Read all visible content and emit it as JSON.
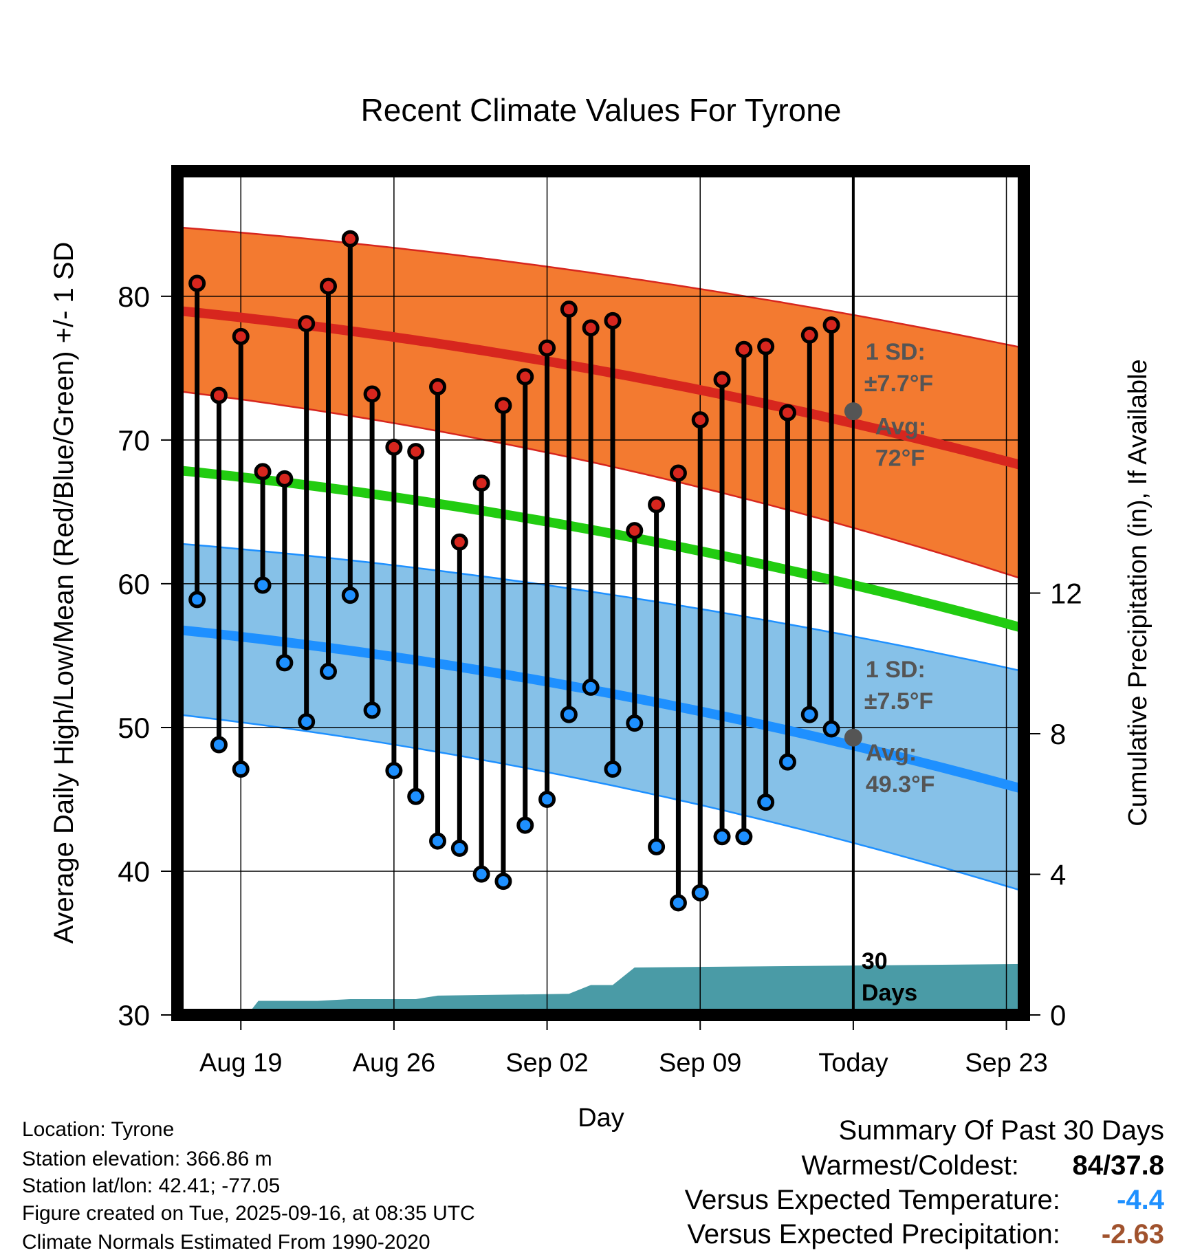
{
  "chart_data": {
    "type": "line",
    "title": "Recent Climate Values For Tyrone",
    "xlabel": "Day",
    "ylabel": "Average Daily High/Low/Mean (Red/Blue/Green) +/- 1 SD",
    "y2label": "Cumulative Precipitation (in), If Available",
    "xlim": [
      -2.9,
      35.8
    ],
    "x_tick_labels": [
      {
        "x": 0,
        "label": "Aug 19"
      },
      {
        "x": 7,
        "label": "Aug 26"
      },
      {
        "x": 14,
        "label": "Sep 02"
      },
      {
        "x": 21,
        "label": "Sep 09"
      },
      {
        "x": 28,
        "label": "Today"
      },
      {
        "x": 35,
        "label": "Sep 23"
      }
    ],
    "ylim": [
      30,
      88.7
    ],
    "y_ticks": [
      30,
      40,
      50,
      60,
      70,
      80
    ],
    "y_tick_labels": [
      "30",
      "40",
      "50",
      "60",
      "70",
      "80"
    ],
    "y2_ticks": [
      0,
      4,
      8,
      12
    ],
    "y2_tick_labels": [
      "0",
      "4",
      "8",
      "12"
    ],
    "y2lim": [
      0,
      24
    ],
    "grid": true,
    "today_x": 28,
    "normals": {
      "x": [
        -2.9,
        35.8
      ],
      "high_avg": [
        79.0,
        68.2
      ],
      "high_plus_sd": [
        84.8,
        76.4
      ],
      "high_minus_sd": [
        73.4,
        60.3
      ],
      "low_avg": [
        56.8,
        45.7
      ],
      "low_plus_sd": [
        62.8,
        53.9
      ],
      "low_minus_sd": [
        50.9,
        38.6
      ],
      "mean_avg": [
        67.9,
        56.9
      ]
    },
    "series": [
      {
        "name": "Daily High",
        "color": "#d7261e",
        "x": [
          -2,
          -1,
          0,
          1,
          2,
          3,
          4,
          5,
          6,
          7,
          8,
          9,
          10,
          11,
          12,
          13,
          14,
          15,
          16,
          17,
          18,
          19,
          20,
          21,
          22,
          23,
          24,
          25,
          26,
          27
        ],
        "values": [
          80.9,
          73.1,
          77.2,
          67.8,
          67.3,
          78.1,
          80.7,
          84.0,
          73.2,
          69.5,
          69.2,
          73.7,
          62.9,
          67.0,
          72.4,
          74.4,
          76.4,
          79.1,
          77.8,
          78.3,
          63.7,
          65.5,
          67.7,
          71.4,
          74.2,
          76.3,
          76.5,
          71.9,
          77.3,
          78.0
        ]
      },
      {
        "name": "Daily Low",
        "color": "#1e90ff",
        "x": [
          -2,
          -1,
          0,
          1,
          2,
          3,
          4,
          5,
          6,
          7,
          8,
          9,
          10,
          11,
          12,
          13,
          14,
          15,
          16,
          17,
          18,
          19,
          20,
          21,
          22,
          23,
          24,
          25,
          26,
          27
        ],
        "values": [
          58.9,
          48.8,
          47.1,
          59.9,
          54.5,
          50.4,
          53.9,
          59.2,
          51.2,
          47.0,
          45.2,
          42.1,
          41.6,
          39.8,
          39.3,
          43.2,
          45.0,
          50.9,
          52.8,
          47.1,
          50.3,
          41.7,
          37.8,
          38.5,
          42.4,
          42.4,
          44.8,
          47.6,
          50.9,
          49.9
        ]
      },
      {
        "name": "Cumulative Precipitation",
        "color": "#4a9ba6",
        "x": [
          -2.9,
          0.3,
          0.8,
          3.5,
          5.0,
          8.0,
          9.0,
          15.0,
          16.0,
          17.0,
          18.0,
          35.8
        ],
        "values": [
          0,
          0,
          0.4,
          0.4,
          0.45,
          0.45,
          0.55,
          0.6,
          0.85,
          0.85,
          1.35,
          1.45
        ]
      }
    ],
    "annotations": {
      "high_sd_label": "1 SD:",
      "high_sd_value": "±7.7°F",
      "high_avg_label": "Avg:",
      "high_avg_value": "72°F",
      "high_avg_today": 72,
      "low_sd_label": "1 SD:",
      "low_sd_value": "±7.5°F",
      "low_avg_label": "Avg:",
      "low_avg_value": "49.3°F",
      "low_avg_today": 49.3,
      "days_number": "30",
      "days_word": "Days"
    },
    "colors": {
      "high_band": "#f37a30",
      "high_line": "#d7261e",
      "low_band": "#86c1e8",
      "low_line": "#1e90ff",
      "mean_line": "#22cc11",
      "precip": "#4a9ba6",
      "annotation_text": "#555555",
      "today_marker": "#555555"
    }
  },
  "info": {
    "location": "Location: Tyrone",
    "elevation": "Station elevation: 366.86 m",
    "latlon": "Station lat/lon: 42.41; -77.05",
    "created": "Figure created on Tue, 2025-09-16, at 08:35 UTC",
    "normals": "Climate Normals Estimated From 1990-2020"
  },
  "summary": {
    "title": "Summary Of Past 30 Days",
    "warmest_label": "Warmest/Coldest:",
    "warmest_value": "84/37.8",
    "temp_label": "Versus Expected Temperature:",
    "temp_value": "-4.4",
    "temp_color": "#1e90ff",
    "precip_label": "Versus Expected Precipitation:",
    "precip_value": "-2.63",
    "precip_color": "#a0522d"
  }
}
